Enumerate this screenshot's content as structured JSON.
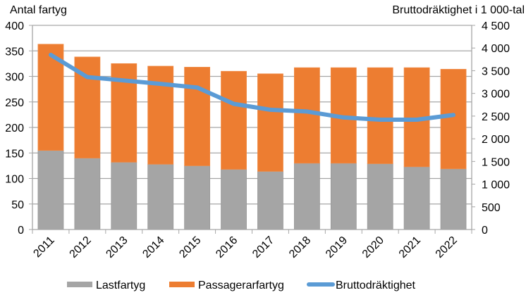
{
  "chart_data": {
    "type": "bar",
    "stacked": true,
    "categories": [
      "2011",
      "2012",
      "2013",
      "2014",
      "2015",
      "2016",
      "2017",
      "2018",
      "2019",
      "2020",
      "2021",
      "2022"
    ],
    "left_axis": {
      "title": "Antal fartyg",
      "range": [
        0,
        400
      ],
      "ticks": [
        0,
        50,
        100,
        150,
        200,
        250,
        300,
        350,
        400
      ],
      "tick_labels": [
        "0",
        "50",
        "100",
        "150",
        "200",
        "250",
        "300",
        "350",
        "400"
      ]
    },
    "right_axis": {
      "title": "Bruttodräktighet i 1 000-tal",
      "range": [
        0,
        4500
      ],
      "ticks": [
        0,
        500,
        1000,
        1500,
        2000,
        2500,
        3000,
        3500,
        4000,
        4500
      ],
      "tick_labels": [
        "0",
        "500",
        "1 000",
        "1 500",
        "2 000",
        "2 500",
        "3 000",
        "3 500",
        "4 000",
        "4 500"
      ]
    },
    "series": [
      {
        "name": "Lastfartyg",
        "type": "bar",
        "axis": "left",
        "color": "#A5A5A5",
        "values": [
          155,
          140,
          132,
          128,
          125,
          118,
          114,
          130,
          130,
          129,
          123,
          119
        ]
      },
      {
        "name": "Passagerarfartyg",
        "type": "bar",
        "axis": "left",
        "color": "#ED7D31",
        "values": [
          208,
          198,
          193,
          192,
          193,
          192,
          191,
          187,
          187,
          188,
          194,
          195
        ]
      },
      {
        "name": "Bruttodräktighet",
        "type": "line",
        "axis": "right",
        "color": "#5B9BD5",
        "values": [
          3850,
          3360,
          3285,
          3210,
          3130,
          2770,
          2640,
          2600,
          2470,
          2420,
          2420,
          2525
        ]
      }
    ],
    "grid": true,
    "legend": "bottom"
  }
}
